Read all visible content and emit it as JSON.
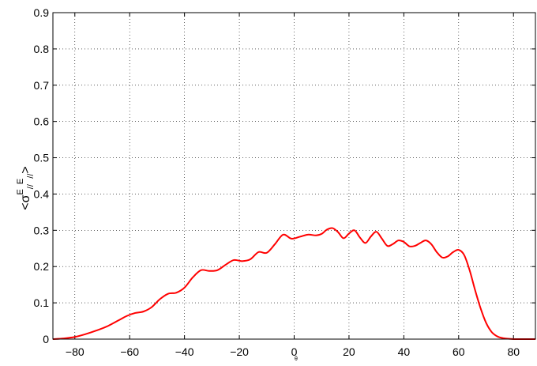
{
  "chart_data": {
    "type": "line",
    "title": "",
    "xlabel": "θ",
    "ylabel": {
      "prefix": "<σ",
      "sup": "E",
      "sub": "//",
      "mid": "E",
      "sub2": "//",
      "suffix": ">"
    },
    "xlim": [
      -88,
      88
    ],
    "ylim": [
      0,
      0.9
    ],
    "grid": true,
    "x_ticks": [
      -80,
      -60,
      -40,
      -20,
      0,
      20,
      40,
      60,
      80
    ],
    "x_tick_labels": [
      "−80",
      "−60",
      "−40",
      "−20",
      "0",
      "20",
      "40",
      "60",
      "80"
    ],
    "y_ticks": [
      0,
      0.1,
      0.2,
      0.3,
      0.4,
      0.5,
      0.6,
      0.7,
      0.8,
      0.9
    ],
    "y_tick_labels": [
      "0",
      "0.1",
      "0.2",
      "0.3",
      "0.4",
      "0.5",
      "0.6",
      "0.7",
      "0.8",
      "0.9"
    ],
    "series": [
      {
        "color": "#ff0000",
        "x": [
          -88,
          -84,
          -80,
          -76,
          -72,
          -68,
          -64,
          -61,
          -58,
          -55,
          -52,
          -49,
          -46,
          -43,
          -40,
          -37,
          -34,
          -31,
          -28,
          -25,
          -22,
          -19,
          -16,
          -13,
          -10,
          -7,
          -4,
          -1,
          2,
          5,
          8,
          10,
          12,
          14,
          16,
          18,
          20,
          22,
          24,
          26,
          28,
          30,
          32,
          34,
          36,
          38,
          40,
          42,
          44,
          46,
          48,
          50,
          52,
          54,
          56,
          58,
          60,
          62,
          64,
          66,
          68,
          70,
          72,
          74,
          76,
          78,
          80,
          82,
          84,
          86,
          88
        ],
        "y": [
          0.0,
          0.002,
          0.006,
          0.014,
          0.024,
          0.036,
          0.052,
          0.064,
          0.072,
          0.076,
          0.088,
          0.11,
          0.125,
          0.128,
          0.142,
          0.17,
          0.19,
          0.188,
          0.19,
          0.205,
          0.218,
          0.215,
          0.22,
          0.24,
          0.238,
          0.262,
          0.288,
          0.277,
          0.282,
          0.288,
          0.286,
          0.29,
          0.302,
          0.306,
          0.295,
          0.278,
          0.291,
          0.3,
          0.28,
          0.265,
          0.283,
          0.296,
          0.277,
          0.257,
          0.262,
          0.272,
          0.268,
          0.256,
          0.257,
          0.265,
          0.272,
          0.262,
          0.24,
          0.225,
          0.228,
          0.24,
          0.246,
          0.232,
          0.19,
          0.135,
          0.085,
          0.045,
          0.02,
          0.008,
          0.003,
          0.001,
          0.0,
          0.0,
          0.0,
          0.0,
          0.0
        ]
      }
    ]
  }
}
